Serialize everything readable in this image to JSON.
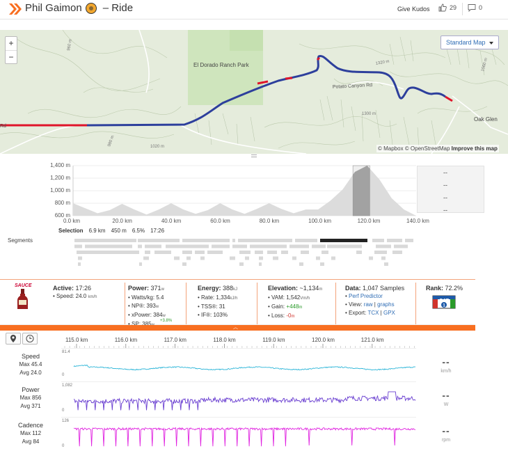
{
  "header": {
    "athlete_name": "Phil Gaimon",
    "activity_type": "– Ride",
    "give_kudos_label": "Give Kudos",
    "kudos_count": "29",
    "comments_count": "0"
  },
  "map": {
    "zoom_in": "+",
    "zoom_out": "−",
    "style_select": "Standard Map",
    "labels": {
      "park": "El Dorado Ranch Park",
      "road": "Potato Canyon Rd",
      "town": "Oak Glen",
      "c1": "960 m",
      "c2": "980 m",
      "c3": "1020 m",
      "c4": "1320 m",
      "c5": "1300 m",
      "c6": "1560 m",
      "rd": "Rd"
    },
    "attribution_mapbox": "© Mapbox",
    "attribution_osm": "© OpenStreetMap",
    "improve": "Improve this map"
  },
  "elevation": {
    "y_ticks": [
      "1,400 m",
      "1,200 m",
      "1,000 m",
      "800 m",
      "600 m"
    ],
    "x_ticks": [
      "0.0 km",
      "20.0 km",
      "40.0 km",
      "60.0 km",
      "80.0 km",
      "100.0 km",
      "120.0 km",
      "140.0 km"
    ],
    "side_values": [
      "--",
      "--",
      "--",
      "--"
    ],
    "selection": {
      "label": "Selection",
      "distance": "6.9 km",
      "gain": "450 m",
      "grade": "6.5%",
      "time": "17:26"
    },
    "segments_label": "Segments",
    "profile_km": [
      0,
      5,
      10,
      15,
      20,
      25,
      30,
      35,
      40,
      45,
      50,
      55,
      60,
      65,
      70,
      75,
      80,
      85,
      90,
      95,
      100,
      105,
      110,
      115,
      120,
      125,
      130,
      135,
      140
    ],
    "profile_m": [
      800,
      720,
      640,
      690,
      790,
      700,
      620,
      700,
      800,
      700,
      630,
      690,
      800,
      700,
      630,
      710,
      800,
      710,
      640,
      700,
      700,
      840,
      1020,
      1300,
      1400,
      1180,
      880,
      700,
      600
    ]
  },
  "sauce": {
    "logo_text": "SAUCE",
    "active": {
      "label": "Active:",
      "value": "17:26",
      "speed_label": "Speed:",
      "speed": "24.0",
      "speed_unit": "km/h"
    },
    "power": {
      "label": "Power:",
      "value": "371",
      "unit": "w",
      "wkg_label": "Watts/kg:",
      "wkg": "5.4",
      "np_label": "NP®:",
      "np": "393",
      "xp_label": "xPower:",
      "xp": "384",
      "sp_label": "SP:",
      "sp": "385",
      "sp_delta": "+3.8%"
    },
    "energy": {
      "label": "Energy:",
      "value": "388",
      "unit": "kJ",
      "rate_label": "Rate:",
      "rate": "1,334",
      "rate_unit": "kJ/h",
      "tss_label": "TSS®:",
      "tss": "31",
      "if_label": "IF®:",
      "if": "103%"
    },
    "elevation": {
      "label": "Elevation:",
      "value": "~1,134",
      "unit": "m",
      "vam_label": "VAM:",
      "vam": "1,542",
      "vam_unit": "Vm/h",
      "gain_label": "Gain:",
      "gain": "+448",
      "gain_unit": "m",
      "loss_label": "Loss:",
      "loss": "-0",
      "loss_unit": "m"
    },
    "data": {
      "label": "Data:",
      "value": "1,047 Samples",
      "perf": "Perf Predictor",
      "view_label": "View:",
      "raw": "raw",
      "graphs": "graphs",
      "export_label": "Export:",
      "tcx": "TCX",
      "gpx": "GPX"
    },
    "rank": {
      "label": "Rank:",
      "value": "72.2%",
      "cat": "CAT 1"
    }
  },
  "analysis": {
    "km_ticks": [
      "115.0 km",
      "116.0 km",
      "117.0 km",
      "118.0 km",
      "119.0 km",
      "120.0 km",
      "121.0 km"
    ],
    "rows": [
      {
        "name": "Speed",
        "max": "Max 45.4",
        "avg": "Avg 24.0",
        "ymax": "81.4",
        "ymin": "0",
        "readout": "--",
        "unit": "km/h",
        "color": "#2bb5d8"
      },
      {
        "name": "Power",
        "max": "Max 856",
        "avg": "Avg 371",
        "ymax": "1,082",
        "ymin": "0",
        "readout": "--",
        "unit": "W",
        "color": "#6a3fd1"
      },
      {
        "name": "Cadence",
        "max": "Max 112",
        "avg": "Avg 84",
        "ymax": "126",
        "ymin": "0",
        "readout": "--",
        "unit": "rpm",
        "color": "#e022e0"
      }
    ]
  },
  "colors": {
    "accent": "#f86f21",
    "route_blue": "#2d3f9c",
    "route_red": "#e0142a",
    "link": "#2f6db5"
  }
}
